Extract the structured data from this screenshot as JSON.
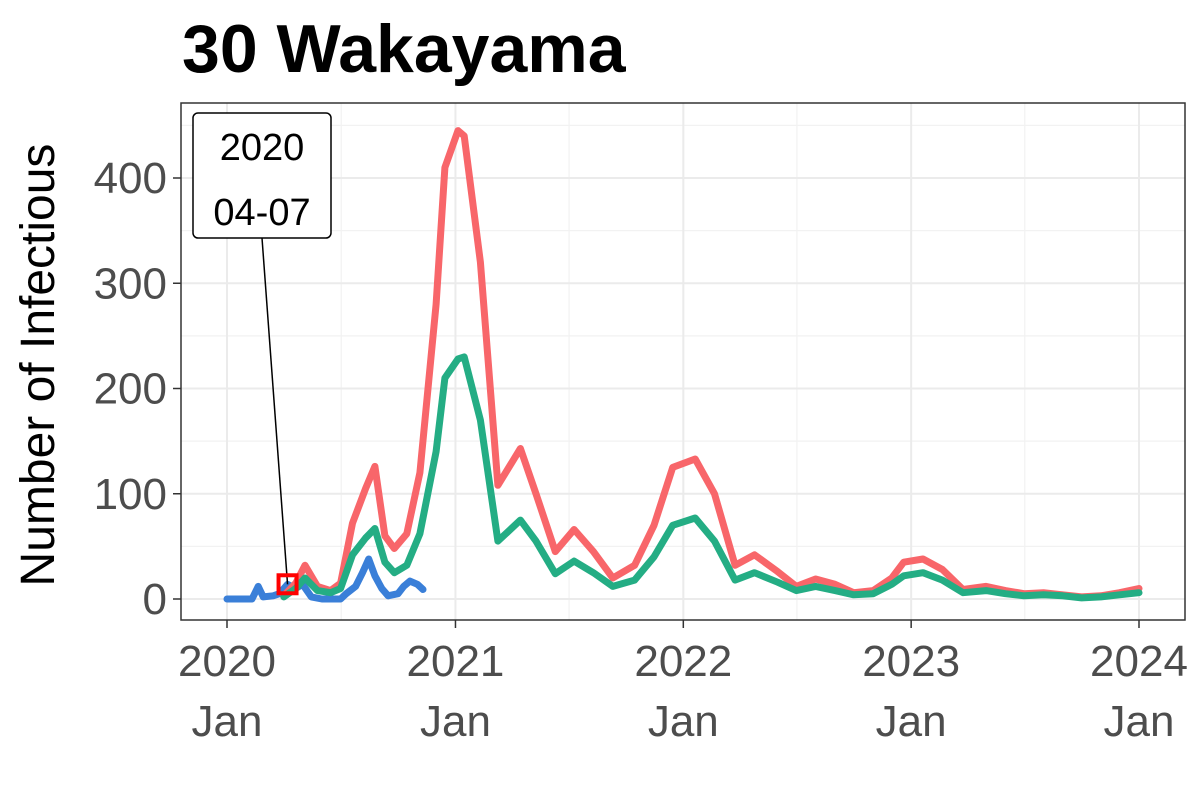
{
  "chart_data": {
    "type": "line",
    "title": "30 Wakayama",
    "xlabel": "",
    "ylabel": "Number of Infectious",
    "xlim": [
      "2020-01-01",
      "2024-01-01"
    ],
    "ylim": [
      -20,
      468
    ],
    "grid": true,
    "legend": "none",
    "y_ticks": [
      0,
      100,
      200,
      300,
      400
    ],
    "x_ticks": [
      {
        "date": "2020-01-01",
        "year": "2020",
        "month": "Jan"
      },
      {
        "date": "2021-01-01",
        "year": "2021",
        "month": "Jan"
      },
      {
        "date": "2022-01-01",
        "year": "2022",
        "month": "Jan"
      },
      {
        "date": "2023-01-01",
        "year": "2023",
        "month": "Jan"
      },
      {
        "date": "2024-01-01",
        "year": "2024",
        "month": "Jan"
      }
    ],
    "series": [
      {
        "color": "#3a7fd8",
        "points": [
          [
            "2020-01-01",
            0
          ],
          [
            "2020-02-10",
            0
          ],
          [
            "2020-02-20",
            12
          ],
          [
            "2020-02-28",
            2
          ],
          [
            "2020-03-15",
            3
          ],
          [
            "2020-03-25",
            5
          ],
          [
            "2020-04-07",
            14
          ],
          [
            "2020-04-20",
            10
          ],
          [
            "2020-05-01",
            14
          ],
          [
            "2020-05-15",
            2
          ],
          [
            "2020-06-01",
            0
          ],
          [
            "2020-07-01",
            0
          ],
          [
            "2020-07-10",
            5
          ],
          [
            "2020-07-25",
            12
          ],
          [
            "2020-08-05",
            25
          ],
          [
            "2020-08-15",
            38
          ],
          [
            "2020-08-25",
            22
          ],
          [
            "2020-09-05",
            10
          ],
          [
            "2020-09-15",
            3
          ],
          [
            "2020-10-01",
            5
          ],
          [
            "2020-10-10",
            12
          ],
          [
            "2020-10-20",
            17
          ],
          [
            "2020-11-01",
            14
          ],
          [
            "2020-11-10",
            9
          ]
        ]
      },
      {
        "color": "#f8666a",
        "points": [
          [
            "2020-04-01",
            3
          ],
          [
            "2020-04-20",
            15
          ],
          [
            "2020-05-05",
            32
          ],
          [
            "2020-05-25",
            12
          ],
          [
            "2020-06-15",
            8
          ],
          [
            "2020-07-01",
            15
          ],
          [
            "2020-07-20",
            72
          ],
          [
            "2020-08-10",
            105
          ],
          [
            "2020-08-25",
            126
          ],
          [
            "2020-09-10",
            60
          ],
          [
            "2020-09-25",
            48
          ],
          [
            "2020-10-15",
            62
          ],
          [
            "2020-11-05",
            120
          ],
          [
            "2020-12-01",
            280
          ],
          [
            "2020-12-15",
            410
          ],
          [
            "2021-01-05",
            445
          ],
          [
            "2021-01-15",
            440
          ],
          [
            "2021-02-10",
            320
          ],
          [
            "2021-03-10",
            108
          ],
          [
            "2021-04-15",
            143
          ],
          [
            "2021-05-10",
            100
          ],
          [
            "2021-06-10",
            45
          ],
          [
            "2021-07-10",
            66
          ],
          [
            "2021-08-10",
            45
          ],
          [
            "2021-09-10",
            20
          ],
          [
            "2021-10-15",
            32
          ],
          [
            "2021-11-15",
            70
          ],
          [
            "2021-12-15",
            125
          ],
          [
            "2022-01-20",
            133
          ],
          [
            "2022-02-20",
            100
          ],
          [
            "2022-03-25",
            32
          ],
          [
            "2022-04-25",
            42
          ],
          [
            "2022-06-01",
            26
          ],
          [
            "2022-07-01",
            12
          ],
          [
            "2022-08-01",
            19
          ],
          [
            "2022-09-01",
            14
          ],
          [
            "2022-10-01",
            6
          ],
          [
            "2022-11-01",
            8
          ],
          [
            "2022-12-01",
            20
          ],
          [
            "2022-12-20",
            35
          ],
          [
            "2023-01-20",
            38
          ],
          [
            "2023-02-20",
            28
          ],
          [
            "2023-03-25",
            9
          ],
          [
            "2023-05-01",
            12
          ],
          [
            "2023-06-01",
            8
          ],
          [
            "2023-07-01",
            5
          ],
          [
            "2023-08-01",
            6
          ],
          [
            "2023-09-01",
            4
          ],
          [
            "2023-10-01",
            2
          ],
          [
            "2023-11-01",
            3
          ],
          [
            "2023-12-01",
            6
          ],
          [
            "2024-01-01",
            10
          ]
        ]
      },
      {
        "color": "#24ad84",
        "points": [
          [
            "2020-04-01",
            2
          ],
          [
            "2020-04-20",
            10
          ],
          [
            "2020-05-05",
            20
          ],
          [
            "2020-05-25",
            8
          ],
          [
            "2020-06-15",
            6
          ],
          [
            "2020-07-01",
            10
          ],
          [
            "2020-07-20",
            42
          ],
          [
            "2020-08-10",
            58
          ],
          [
            "2020-08-25",
            67
          ],
          [
            "2020-09-10",
            35
          ],
          [
            "2020-09-25",
            25
          ],
          [
            "2020-10-15",
            32
          ],
          [
            "2020-11-05",
            62
          ],
          [
            "2020-12-01",
            140
          ],
          [
            "2020-12-15",
            210
          ],
          [
            "2021-01-05",
            228
          ],
          [
            "2021-01-15",
            230
          ],
          [
            "2021-02-10",
            170
          ],
          [
            "2021-03-10",
            55
          ],
          [
            "2021-04-15",
            75
          ],
          [
            "2021-05-10",
            55
          ],
          [
            "2021-06-10",
            24
          ],
          [
            "2021-07-10",
            36
          ],
          [
            "2021-08-10",
            25
          ],
          [
            "2021-09-10",
            12
          ],
          [
            "2021-10-15",
            18
          ],
          [
            "2021-11-15",
            40
          ],
          [
            "2021-12-15",
            70
          ],
          [
            "2022-01-20",
            77
          ],
          [
            "2022-02-20",
            55
          ],
          [
            "2022-03-25",
            18
          ],
          [
            "2022-04-25",
            25
          ],
          [
            "2022-06-01",
            16
          ],
          [
            "2022-07-01",
            8
          ],
          [
            "2022-08-01",
            12
          ],
          [
            "2022-09-01",
            8
          ],
          [
            "2022-10-01",
            4
          ],
          [
            "2022-11-01",
            5
          ],
          [
            "2022-12-01",
            14
          ],
          [
            "2022-12-20",
            22
          ],
          [
            "2023-01-20",
            25
          ],
          [
            "2023-02-20",
            18
          ],
          [
            "2023-03-25",
            6
          ],
          [
            "2023-05-01",
            8
          ],
          [
            "2023-06-01",
            5
          ],
          [
            "2023-07-01",
            3
          ],
          [
            "2023-08-01",
            4
          ],
          [
            "2023-09-01",
            3
          ],
          [
            "2023-10-01",
            1
          ],
          [
            "2023-11-01",
            2
          ],
          [
            "2023-12-01",
            4
          ],
          [
            "2024-01-01",
            6
          ]
        ]
      }
    ],
    "annotations": [
      {
        "date": "2020-04-07",
        "value": 14,
        "label_line1": "2020",
        "label_line2": "04-07",
        "marker": "square",
        "marker_color": "#ff0000"
      }
    ]
  }
}
